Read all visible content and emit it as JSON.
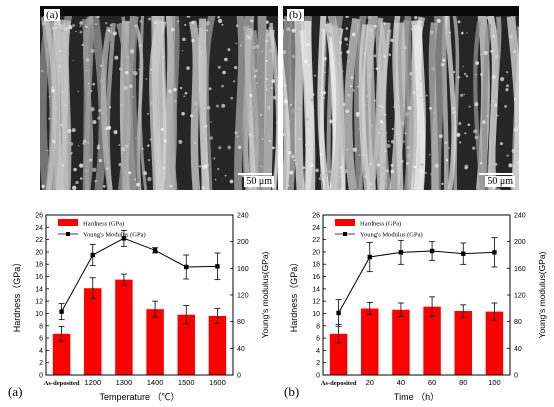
{
  "micrographs": [
    {
      "tag": "(a)",
      "scale_label": "50 μm"
    },
    {
      "tag": "(b)",
      "scale_label": "50 μm"
    }
  ],
  "captions": {
    "a": "(a)",
    "b": "(b)"
  },
  "chart_data": [
    {
      "type": "bar",
      "categories": [
        "As-deposited",
        "1200",
        "1300",
        "1400",
        "1500",
        "1600"
      ],
      "xlabel": "Temperature （℃）",
      "ylabel": "Hardness（GPa）",
      "y2label": "Young's modulus(GPa)",
      "ylim": [
        0,
        26
      ],
      "y2lim": [
        0,
        240
      ],
      "yticks": [
        0,
        2,
        4,
        6,
        8,
        10,
        12,
        14,
        16,
        18,
        20,
        22,
        24,
        26
      ],
      "y2ticks": [
        0,
        40,
        80,
        120,
        160,
        200,
        240
      ],
      "legend_position": "top-left",
      "bar_color": "#ff0000",
      "series": [
        {
          "name": "Hardness (GPa)",
          "type": "bar",
          "axis": "left",
          "values": [
            6.7,
            14.1,
            15.5,
            10.7,
            9.8,
            9.6
          ],
          "errors": [
            1.2,
            1.7,
            0.9,
            1.3,
            1.5,
            1.2
          ]
        },
        {
          "name": "Young's Modulus (GPa)",
          "type": "line",
          "axis": "right",
          "values": [
            95,
            180,
            205,
            187,
            162,
            163
          ],
          "errors": [
            12,
            16,
            12,
            4,
            18,
            20
          ]
        }
      ]
    },
    {
      "type": "bar",
      "categories": [
        "As-deposited",
        "20",
        "40",
        "60",
        "80",
        "100"
      ],
      "xlabel": "Time （h）",
      "ylabel": "Hardness（GPa）",
      "y2label": "Young's modulus(GPa)",
      "ylim": [
        0,
        26
      ],
      "y2lim": [
        0,
        240
      ],
      "yticks": [
        0,
        2,
        4,
        6,
        8,
        10,
        12,
        14,
        16,
        18,
        20,
        22,
        24,
        26
      ],
      "y2ticks": [
        0,
        40,
        80,
        120,
        160,
        200,
        240
      ],
      "legend_position": "top-left",
      "bar_color": "#ff0000",
      "series": [
        {
          "name": "Hardness (GPa)",
          "type": "bar",
          "axis": "left",
          "values": [
            6.7,
            10.8,
            10.6,
            11.1,
            10.4,
            10.3
          ],
          "errors": [
            1.5,
            1.0,
            1.1,
            1.6,
            1.0,
            1.4
          ]
        },
        {
          "name": "Young's Modulus (GPa)",
          "type": "line",
          "axis": "right",
          "values": [
            93,
            177,
            184,
            186,
            182,
            184
          ],
          "errors": [
            20,
            22,
            18,
            14,
            16,
            22
          ]
        }
      ]
    }
  ]
}
